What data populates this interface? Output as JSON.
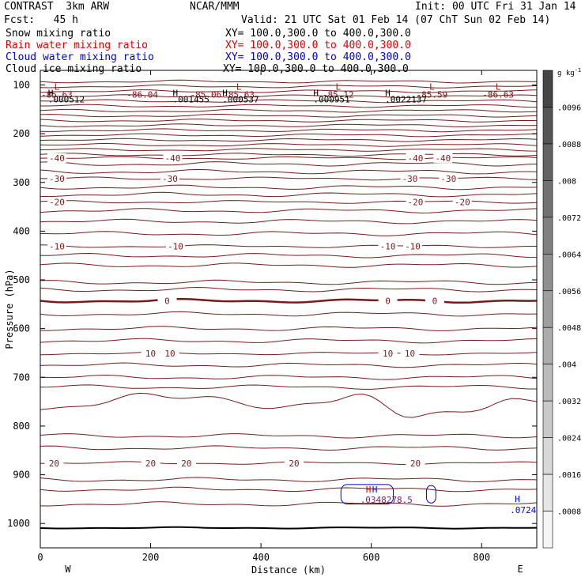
{
  "header": {
    "title_left": "CONTRAST  3km ARW",
    "title_center": "NCAR/MMM",
    "init": "Init: 00 UTC Fri 31 Jan 14",
    "fcst": "Fcst:   45 h",
    "valid": "Valid: 21 UTC Sat 01 Feb 14 (07 ChT Sun 02 Feb 14)"
  },
  "legend": [
    {
      "label": "Snow mixing ratio",
      "xy": "XY= 100.0,300.0 to 400.0,300.0",
      "color": "#000000"
    },
    {
      "label": "Rain water mixing ratio",
      "xy": "XY= 100.0,300.0 to 400.0,300.0",
      "color": "#e00000"
    },
    {
      "label": "Cloud water mixing ratio",
      "xy": "XY= 100.0,300.0 to 400.0,300.0",
      "color": "#0000cc"
    },
    {
      "label": "Cloud ice mixing ratio",
      "xy": "XY= 100.0,300.0 to 400.0,300.0",
      "color": "#000000"
    }
  ],
  "chart_data": {
    "type": "cross-section contour",
    "xlabel": "Distance (km)",
    "ylabel": "Pressure (hPa)",
    "x_range": [
      0,
      900
    ],
    "y_range": [
      1050,
      70
    ],
    "x_ticks": [
      0,
      200,
      400,
      600,
      800
    ],
    "x_tick_labels": [
      "0",
      "200",
      "400",
      "600",
      "800"
    ],
    "y_ticks": [
      100,
      200,
      300,
      400,
      500,
      600,
      700,
      800,
      900,
      1000
    ],
    "y_tick_labels": [
      "100",
      "200",
      "300",
      "400",
      "500",
      "600",
      "700",
      "800",
      "900",
      "1000"
    ],
    "x_end_labels": {
      "left": "W",
      "right": "E"
    },
    "temperature_contours": [
      {
        "level": -40,
        "p": 250,
        "labels_km": [
          30,
          240,
          680,
          730
        ]
      },
      {
        "level": -30,
        "p": 292,
        "labels_km": [
          30,
          235,
          670,
          740
        ]
      },
      {
        "level": -20,
        "p": 340,
        "labels_km": [
          30,
          680,
          765
        ]
      },
      {
        "level": -10,
        "p": 431,
        "labels_km": [
          30,
          245,
          630,
          675
        ]
      },
      {
        "level": 0,
        "p": 543,
        "labels_km": [
          230,
          630,
          715
        ]
      },
      {
        "level": 10,
        "p": 651,
        "labels_km": [
          200,
          235,
          630,
          670
        ]
      },
      {
        "level": 20,
        "p": 876,
        "labels_km": [
          25,
          200,
          265,
          460,
          680
        ]
      }
    ],
    "temperature_contour_levels": [
      "-40",
      "-30",
      "-20",
      "-10",
      "0",
      "10",
      "20"
    ],
    "tropopause_lows": [
      {
        "km": 30,
        "label": "L",
        "value": "-85.63"
      },
      {
        "km": 185,
        "label": "",
        "value": "-86.04"
      },
      {
        "km": 300,
        "label": "",
        "value": "-85.06"
      },
      {
        "km": 360,
        "label": "L",
        "value": "-85.63"
      },
      {
        "km": 540,
        "label": "L",
        "value": "-85.12"
      },
      {
        "km": 710,
        "label": "L",
        "value": "-85.59"
      },
      {
        "km": 830,
        "label": "L",
        "value": "-86.63"
      }
    ],
    "ice_highs": [
      {
        "km": 14,
        "label": "H",
        "value": ".000512"
      },
      {
        "km": 240,
        "label": "H",
        "value": ".001455"
      },
      {
        "km": 330,
        "label": "H",
        "value": ".000537"
      },
      {
        "km": 495,
        "label": "H",
        "value": ".000951"
      },
      {
        "km": 625,
        "label": "H",
        "value": ".0022137"
      }
    ],
    "low_level_highs": [
      {
        "km": 590,
        "p": 940,
        "value": ".0348278.5",
        "color": "#0000cc"
      },
      {
        "km": 860,
        "p": 975,
        "value": ".0724",
        "color": "#0000cc"
      }
    ],
    "colorbar": {
      "unit": "g kg",
      "unit_exp": "-1",
      "labels": [
        ".0096",
        ".0088",
        ".008",
        ".0072",
        ".0064",
        ".0056",
        ".0048",
        ".004",
        ".0032",
        ".0024",
        ".0016",
        ".0008"
      ]
    }
  }
}
